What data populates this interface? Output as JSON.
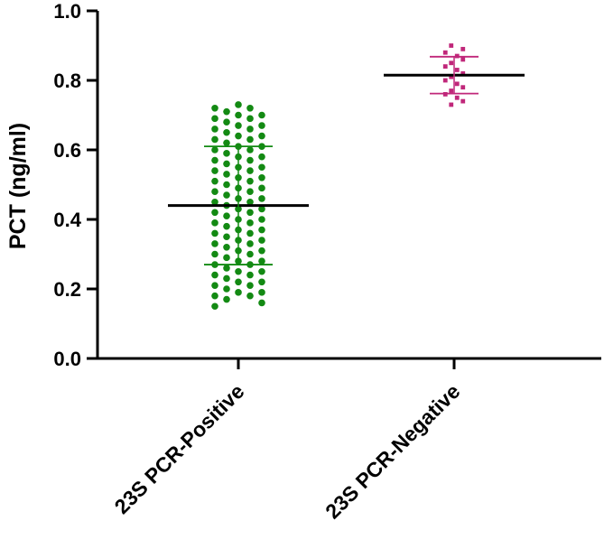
{
  "chart_data": {
    "type": "scatter",
    "ylabel": "PCT (ng/ml)",
    "ylim": [
      0,
      1.0
    ],
    "yticks": [
      "0.0",
      "0.2",
      "0.4",
      "0.6",
      "0.8",
      "1.0"
    ],
    "categories": [
      "23S PCR-Positive",
      "23S PCR-Negative"
    ],
    "series": [
      {
        "color": "#138a13",
        "marker": "circle",
        "mean": 0.44,
        "sd_low": 0.27,
        "sd_high": 0.61,
        "columns": [
          [
            0.15,
            0.18,
            0.21,
            0.24,
            0.27,
            0.3,
            0.33,
            0.36,
            0.39,
            0.42,
            0.45,
            0.48,
            0.51,
            0.54,
            0.57,
            0.6,
            0.63,
            0.66,
            0.69,
            0.72
          ],
          [
            0.17,
            0.2,
            0.23,
            0.26,
            0.29,
            0.32,
            0.35,
            0.38,
            0.41,
            0.44,
            0.47,
            0.5,
            0.53,
            0.56,
            0.59,
            0.62,
            0.65,
            0.68,
            0.71
          ],
          [
            0.19,
            0.22,
            0.25,
            0.28,
            0.31,
            0.34,
            0.37,
            0.4,
            0.43,
            0.46,
            0.49,
            0.52,
            0.55,
            0.58,
            0.61,
            0.64,
            0.67,
            0.7,
            0.73
          ],
          [
            0.18,
            0.21,
            0.24,
            0.27,
            0.3,
            0.33,
            0.36,
            0.39,
            0.42,
            0.45,
            0.48,
            0.51,
            0.54,
            0.57,
            0.6,
            0.63,
            0.66,
            0.69,
            0.72
          ],
          [
            0.16,
            0.19,
            0.22,
            0.25,
            0.28,
            0.31,
            0.34,
            0.37,
            0.4,
            0.43,
            0.46,
            0.49,
            0.52,
            0.55,
            0.58,
            0.61,
            0.64,
            0.67,
            0.7
          ]
        ]
      },
      {
        "color": "#c0277a",
        "marker": "square",
        "mean": 0.815,
        "sd_low": 0.762,
        "sd_high": 0.868,
        "columns": [
          [
            0.76,
            0.8,
            0.84,
            0.88
          ],
          [
            0.73,
            0.77,
            0.81,
            0.85,
            0.9
          ],
          [
            0.75,
            0.79,
            0.83,
            0.87
          ],
          [
            0.74,
            0.78,
            0.82,
            0.86,
            0.89
          ]
        ]
      }
    ]
  }
}
